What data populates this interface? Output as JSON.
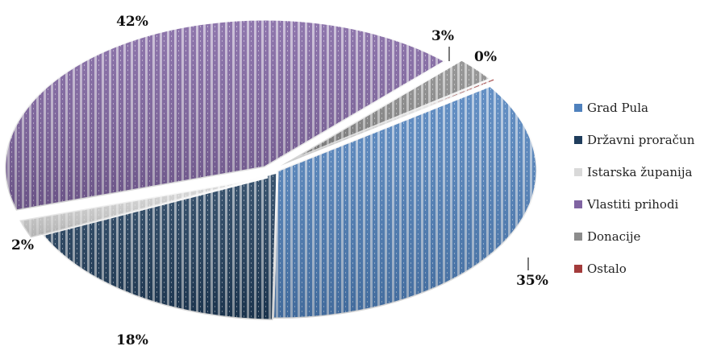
{
  "chart_data": {
    "type": "pie",
    "title": "",
    "categories": [
      "Grad Pula",
      "Državni proračun",
      "Istarska županija",
      "Vlastiti prihodi",
      "Donacije",
      "Ostalo"
    ],
    "values": [
      35,
      18,
      2,
      42,
      3,
      0
    ],
    "data_labels": [
      "35%",
      "18%",
      "2%",
      "42%",
      "3%",
      "0%"
    ],
    "colors": [
      "#4f81bd",
      "#1f3d5c",
      "#d9d9d9",
      "#8064a2",
      "#8c8c8c",
      "#a33b3b"
    ],
    "legend": "right",
    "exploded": true,
    "style": "3d-striped"
  }
}
